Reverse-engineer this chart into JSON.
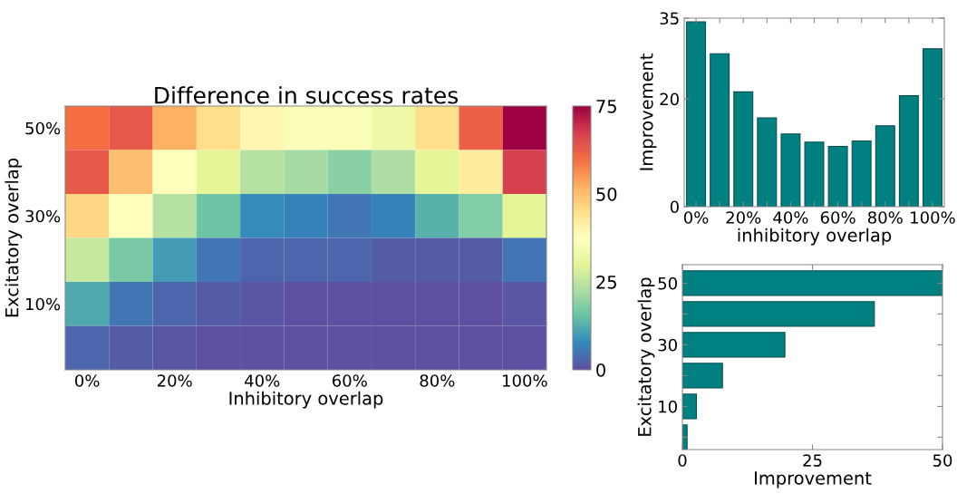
{
  "chart_data": [
    {
      "type": "heatmap",
      "title": "Difference in success rates",
      "xlabel": "Inhibitory overlap",
      "ylabel": "Excitatory overlap",
      "categories": [
        "0%",
        null,
        "20%",
        null,
        "40%",
        null,
        "60%",
        null,
        "80%",
        null,
        "100%"
      ],
      "y_categories": [
        "50%",
        null,
        "30%",
        null,
        "10%",
        null
      ],
      "cells": [
        [
          60,
          63,
          52,
          45,
          40,
          36,
          36,
          33,
          45,
          62,
          75
        ],
        [
          63,
          50,
          37,
          30,
          24,
          22,
          19,
          23,
          30,
          42,
          67
        ],
        [
          46,
          37,
          24,
          16,
          8,
          7,
          5,
          7,
          13,
          18,
          30
        ],
        [
          26,
          17,
          10,
          5,
          3,
          3,
          3,
          2,
          2,
          2,
          5
        ],
        [
          12,
          5,
          3,
          2,
          1,
          0,
          0,
          0,
          0,
          0,
          1
        ],
        [
          3,
          2,
          1,
          0,
          0,
          0,
          0,
          0,
          0,
          0,
          0
        ]
      ],
      "clim": [
        0,
        75
      ],
      "cticks": [
        0,
        25,
        50,
        75
      ]
    },
    {
      "type": "bar",
      "xlabel": "inhibitory overlap",
      "ylabel": "Improvement",
      "color": "#008080",
      "categories": [
        "0%",
        null,
        "20%",
        null,
        "40%",
        null,
        "60%",
        null,
        "80%",
        null,
        "100%"
      ],
      "values": [
        34.3,
        28.4,
        21.3,
        16.5,
        13.5,
        12.0,
        11.2,
        12.2,
        15.0,
        20.6,
        29.3
      ],
      "ylim": [
        0,
        35
      ],
      "yticks": [
        0,
        20,
        35
      ]
    },
    {
      "type": "bar",
      "orientation": "horizontal",
      "xlabel": "Improvement",
      "ylabel": "Excitatory overlap",
      "color": "#008080",
      "categories": [
        "50",
        null,
        "30",
        null,
        "10",
        null
      ],
      "values": [
        50,
        36.9,
        19.7,
        7.7,
        2.7,
        0.9
      ],
      "xlim": [
        0,
        50
      ],
      "xticks": [
        0,
        25,
        50
      ]
    }
  ]
}
